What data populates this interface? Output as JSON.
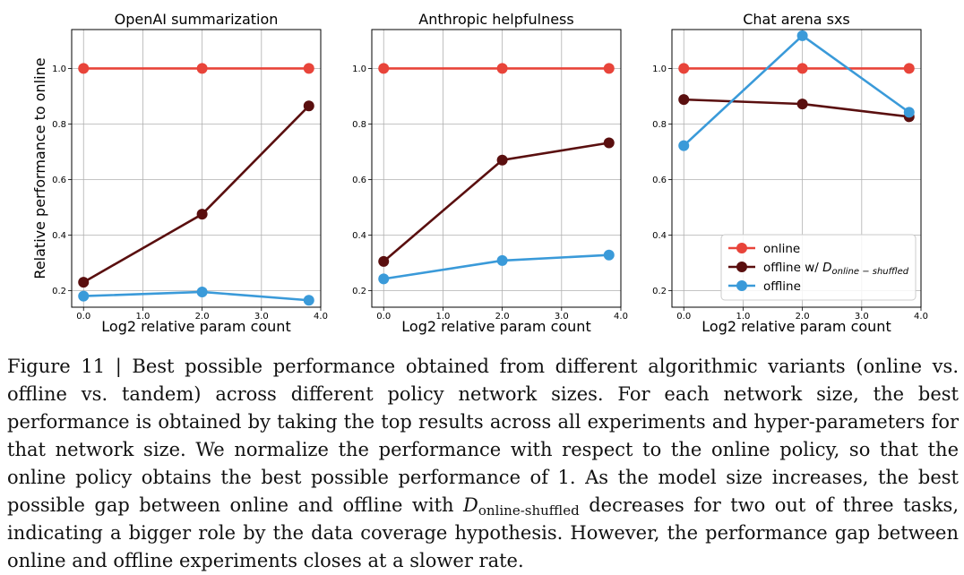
{
  "chart_data": [
    {
      "type": "line",
      "title": "OpenAI summarization",
      "xlabel": "Log2 relative param count",
      "ylabel": "Relative performance to online",
      "xlim": [
        -0.2,
        4.0
      ],
      "ylim": [
        0.14,
        1.14
      ],
      "xticks": [
        "0.0",
        "1.0",
        "2.0",
        "3.0",
        "4.0"
      ],
      "yticks": [
        "0.2",
        "0.4",
        "0.6",
        "0.8",
        "1.0"
      ],
      "x": [
        0,
        2,
        3.8
      ],
      "grid": true,
      "series": [
        {
          "key": "online",
          "color": "#e8443a",
          "values": [
            1.0,
            1.0,
            1.0
          ]
        },
        {
          "key": "shuffled",
          "color": "#5a0f0f",
          "values": [
            0.23,
            0.475,
            0.865
          ]
        },
        {
          "key": "offline",
          "color": "#3a9ad9",
          "values": [
            0.18,
            0.195,
            0.165
          ]
        }
      ]
    },
    {
      "type": "line",
      "title": "Anthropic helpfulness",
      "xlabel": "Log2 relative param count",
      "ylabel": "",
      "xlim": [
        -0.2,
        4.0
      ],
      "ylim": [
        0.14,
        1.14
      ],
      "xticks": [
        "0.0",
        "1.0",
        "2.0",
        "3.0",
        "4.0"
      ],
      "yticks": [
        "0.2",
        "0.4",
        "0.6",
        "0.8",
        "1.0"
      ],
      "x": [
        0,
        2,
        3.8
      ],
      "grid": true,
      "series": [
        {
          "key": "online",
          "color": "#e8443a",
          "values": [
            1.0,
            1.0,
            1.0
          ]
        },
        {
          "key": "shuffled",
          "color": "#5a0f0f",
          "values": [
            0.305,
            0.67,
            0.732
          ]
        },
        {
          "key": "offline",
          "color": "#3a9ad9",
          "values": [
            0.242,
            0.308,
            0.328
          ]
        }
      ]
    },
    {
      "type": "line",
      "title": "Chat arena sxs",
      "xlabel": "Log2 relative param count",
      "ylabel": "",
      "xlim": [
        -0.2,
        4.0
      ],
      "ylim": [
        0.14,
        1.14
      ],
      "xticks": [
        "0.0",
        "1.0",
        "2.0",
        "3.0",
        "4.0"
      ],
      "yticks": [
        "0.2",
        "0.4",
        "0.6",
        "0.8",
        "1.0"
      ],
      "x": [
        0,
        2,
        3.8
      ],
      "grid": true,
      "legend": {
        "position": "lower-right",
        "items": [
          {
            "label": "online",
            "color": "#e8443a"
          },
          {
            "label": "offline w/ ",
            "math": "D",
            "sub": "online − shuffled",
            "color": "#5a0f0f"
          },
          {
            "label": "offline",
            "color": "#3a9ad9"
          }
        ]
      },
      "series": [
        {
          "key": "online",
          "color": "#e8443a",
          "values": [
            1.0,
            1.0,
            1.0
          ]
        },
        {
          "key": "shuffled",
          "color": "#5a0f0f",
          "values": [
            0.888,
            0.872,
            0.826
          ]
        },
        {
          "key": "offline",
          "color": "#3a9ad9",
          "values": [
            0.722,
            1.118,
            0.842
          ]
        }
      ]
    }
  ],
  "caption": {
    "part1": "Figure 11 | Best possible performance obtained from different algorithmic variants (online vs. offline vs. tandem) across different policy network sizes. For each network size, the best performance is obtained by taking the top results across all experiments and hyper-parameters for that network size. We normalize the performance with respect to the online policy, so that the online policy obtains the best possible performance of 1. As the model size increases, the best possible gap between online and offline with ",
    "symbol": "D",
    "subscript": "online-shuffled",
    "part2": " decreases for two out of three tasks, indicating a bigger role by the data coverage hypothesis. However, the performance gap between online and offline experiments closes at a slower rate."
  }
}
